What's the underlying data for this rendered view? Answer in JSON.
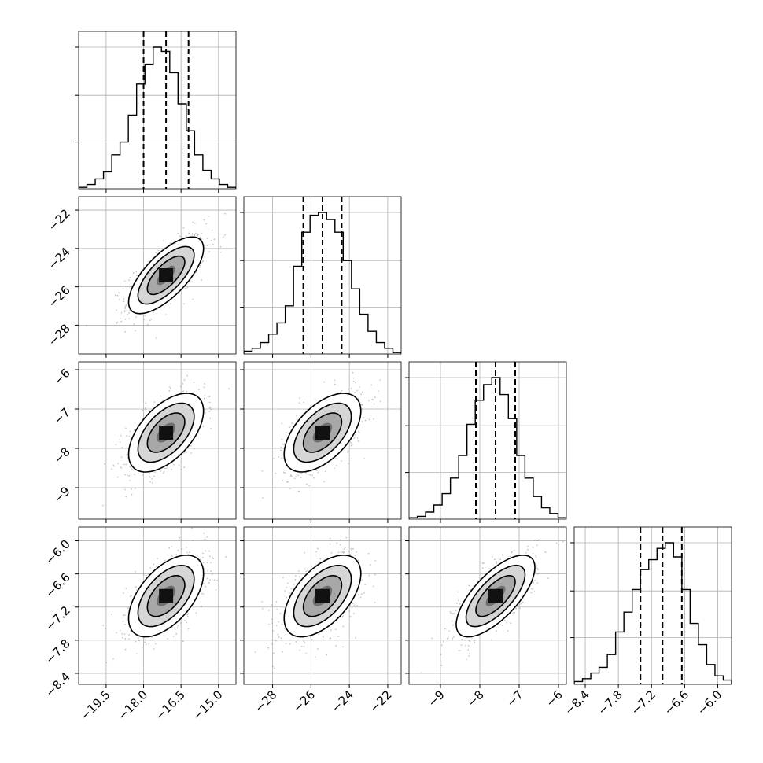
{
  "chart_data": {
    "type": "corner",
    "title": "",
    "parameters": [
      {
        "name": "",
        "median": -17.1,
        "q16": -18.0,
        "q84": -16.2,
        "sigma": 0.75,
        "range": [
          -20.6,
          -14.3
        ],
        "ticks": [
          -19.5,
          -18.0,
          -16.5,
          -15.0
        ],
        "tick_labels": [
          "−19.5",
          "−18.0",
          "−16.5",
          "−15.0"
        ]
      },
      {
        "name": "",
        "median": -25.4,
        "q16": -26.4,
        "q84": -24.4,
        "sigma": 1.0,
        "range": [
          -29.5,
          -21.3
        ],
        "ticks": [
          -28,
          -26,
          -24,
          -22
        ],
        "tick_labels": [
          "−28",
          "−26",
          "−24",
          "−22"
        ]
      },
      {
        "name": "",
        "median": -7.6,
        "q16": -8.1,
        "q84": -7.1,
        "sigma": 0.5,
        "range": [
          -9.8,
          -5.8
        ],
        "ticks": [
          -9,
          -8,
          -7,
          -6
        ],
        "tick_labels": [
          "−9",
          "−8",
          "−7",
          "−6"
        ]
      },
      {
        "name": "",
        "median": -7.0,
        "q16": -7.4,
        "q84": -6.65,
        "sigma": 0.37,
        "range": [
          -8.6,
          -5.75
        ],
        "ticks": [
          -8.4,
          -7.8,
          -7.2,
          -6.6,
          -6.0
        ],
        "tick_labels": [
          "−8.4",
          "−7.8",
          "−7.2",
          "−6.6",
          "−6.0"
        ]
      }
    ],
    "correlations": [
      [
        1.0,
        0.7,
        0.55,
        0.55
      ],
      [
        0.7,
        1.0,
        0.55,
        0.55
      ],
      [
        0.55,
        0.55,
        1.0,
        0.7
      ],
      [
        0.55,
        0.55,
        0.7,
        1.0
      ]
    ],
    "histograms": [
      [
        0.01,
        0.03,
        0.07,
        0.12,
        0.24,
        0.33,
        0.52,
        0.74,
        0.88,
        1.0,
        0.97,
        0.82,
        0.6,
        0.41,
        0.24,
        0.13,
        0.07,
        0.03,
        0.01
      ],
      [
        0.02,
        0.04,
        0.08,
        0.14,
        0.22,
        0.34,
        0.62,
        0.86,
        0.98,
        1.0,
        0.95,
        0.86,
        0.66,
        0.46,
        0.28,
        0.16,
        0.08,
        0.04,
        0.01
      ],
      [
        0.01,
        0.02,
        0.05,
        0.1,
        0.18,
        0.29,
        0.45,
        0.67,
        0.84,
        0.95,
        1.0,
        0.88,
        0.71,
        0.45,
        0.29,
        0.16,
        0.08,
        0.04,
        0.01
      ],
      [
        0.02,
        0.04,
        0.08,
        0.12,
        0.21,
        0.37,
        0.51,
        0.67,
        0.81,
        0.88,
        0.96,
        1.0,
        0.9,
        0.67,
        0.43,
        0.28,
        0.14,
        0.06,
        0.03
      ]
    ],
    "contour_levels_sigma": [
      0.5,
      1.0,
      1.5,
      2.0
    ],
    "quantile_lines": "dashed",
    "grid": true,
    "colors": {
      "line": "#000000",
      "grid": "#b0b0b0",
      "scatter": "#a0a0a0"
    }
  }
}
